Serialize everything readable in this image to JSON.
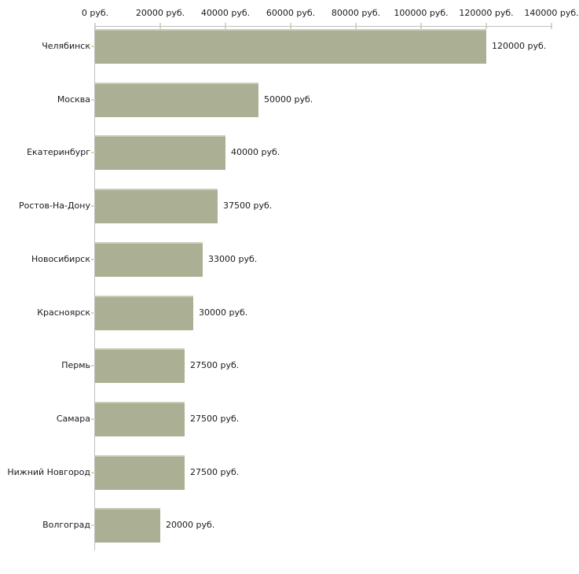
{
  "chart_data": {
    "type": "bar",
    "orientation": "horizontal",
    "title": "",
    "xlabel": "",
    "ylabel": "",
    "categories": [
      "Челябинск",
      "Москва",
      "Екатеринбург",
      "Ростов-На-Дону",
      "Новосибирск",
      "Красноярск",
      "Пермь",
      "Самара",
      "Нижний Новгород",
      "Волгоград"
    ],
    "values": [
      120000,
      50000,
      40000,
      37500,
      33000,
      30000,
      27500,
      27500,
      27500,
      20000
    ],
    "value_labels": [
      "120000 руб.",
      "50000 руб.",
      "40000 руб.",
      "37500 руб.",
      "33000 руб.",
      "30000 руб.",
      "27500 руб.",
      "27500 руб.",
      "27500 руб.",
      "20000 руб."
    ],
    "x_ticks": [
      0,
      20000,
      40000,
      60000,
      80000,
      100000,
      120000,
      140000
    ],
    "x_tick_labels": [
      "0 руб.",
      "20000 руб.",
      "40000 руб.",
      "60000 руб.",
      "80000 руб.",
      "100000 руб.",
      "120000 руб.",
      "140000 руб."
    ],
    "xlim": [
      0,
      140000
    ],
    "legend": "none",
    "grid": "off",
    "colors": {
      "bar_fill": "#abaf93",
      "bar_top_edge": "#c9ccb5",
      "axis_line": "#c0c0c0",
      "tick_mark": "#d7dabb",
      "text": "#1a1a1a",
      "background": "#ffffff"
    }
  }
}
